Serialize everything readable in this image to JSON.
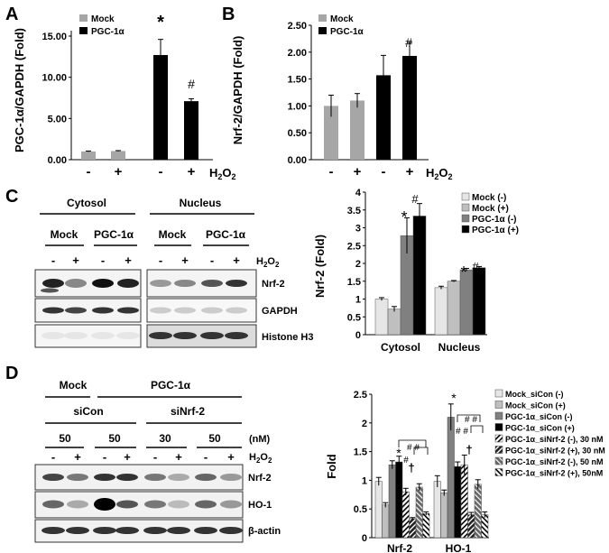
{
  "panel_letters": {
    "a": "A",
    "b": "B",
    "c": "C",
    "d": "D"
  },
  "h2o2": "H2O2",
  "panel_a": {
    "ylabel": "PGC-1α/GAPDH (Fold)",
    "yticks": [
      "0.00",
      "5.00",
      "10.00",
      "15.00"
    ],
    "legend": [
      "Mock",
      "PGC-1α"
    ],
    "treatment": [
      "-",
      "+",
      "-",
      "+"
    ],
    "marks": [
      "*",
      "#"
    ]
  },
  "panel_b": {
    "ylabel": "Nrf-2/GAPDH (Fold)",
    "yticks": [
      "0.00",
      "0.50",
      "1.00",
      "1.50",
      "2.00",
      "2.50"
    ],
    "legend": [
      "Mock",
      "PGC-1α"
    ],
    "treatment": [
      "-",
      "+",
      "-",
      "+"
    ],
    "marks": [
      "#"
    ]
  },
  "panel_c": {
    "blot": {
      "sections": [
        "Cytosol",
        "Nucleus"
      ],
      "groups": [
        "Mock",
        "PGC-1α",
        "Mock",
        "PGC-1α"
      ],
      "treatment": [
        "-",
        "+",
        "-",
        "+",
        "-",
        "+",
        "-",
        "+"
      ],
      "rows": [
        "Nrf-2",
        "GAPDH",
        "Histone H3"
      ]
    },
    "chart": {
      "ylabel": "Nrf-2 (Fold)",
      "yticks": [
        "0",
        "0.5",
        "1",
        "1.5",
        "2",
        "2.5",
        "3",
        "3.5",
        "4"
      ],
      "legend": [
        "Mock (-)",
        "Mock (+)",
        "PGC-1α (-)",
        "PGC-1α (+)"
      ],
      "categories": [
        "Cytosol",
        "Nucleus"
      ],
      "marks": [
        "*",
        "#",
        "*",
        "#"
      ]
    }
  },
  "panel_d": {
    "blot": {
      "groups_top": [
        "Mock",
        "PGC-1α"
      ],
      "groups_mid": [
        "siCon",
        "siNrf-2"
      ],
      "doses": [
        "50",
        "50",
        "30",
        "50"
      ],
      "unit": "(nM)",
      "treatment": [
        "-",
        "+",
        "-",
        "+",
        "-",
        "+",
        "-",
        "+"
      ],
      "rows": [
        "Nrf-2",
        "HO-1",
        "β-actin"
      ]
    },
    "chart": {
      "ylabel": "Fold",
      "yticks": [
        "0",
        "0.5",
        "1",
        "1.5",
        "2",
        "2.5"
      ],
      "legend": [
        "Mock_siCon (-)",
        "Mock_siCon (+)",
        "PGC-1α_siCon (-)",
        "PGC-1α_siCon (+)",
        "PGC-1α_siNrf-2 (-), 30 nM",
        "PGC-1α_siNrf-2 (+), 30 nM",
        "PGC-1α_siNrf-2 (-), 50 nM",
        "PGC-1α_siNrf-2 (+), 50nM"
      ],
      "categories": [
        "Nrf-2",
        "HO-1"
      ],
      "marks": [
        "*",
        "#",
        "†",
        "†",
        "# #",
        "# #"
      ]
    }
  },
  "chart_data": [
    {
      "type": "bar",
      "categories": [
        "Mock -",
        "Mock +",
        "PGC-1α -",
        "PGC-1α +"
      ],
      "values": [
        1.0,
        1.05,
        12.7,
        7.1
      ],
      "errors": [
        0.05,
        0.05,
        1.9,
        0.3
      ],
      "ylim": [
        0,
        15
      ],
      "ylabel": "PGC-1α/GAPDH (Fold)",
      "grid": false,
      "legend": "top-left",
      "colors": [
        "#a6a6a6",
        "#a6a6a6",
        "#000000",
        "#000000"
      ]
    },
    {
      "type": "bar",
      "categories": [
        "Mock -",
        "Mock +",
        "PGC-1α -",
        "PGC-1α +"
      ],
      "values": [
        1.0,
        1.1,
        1.57,
        1.93
      ],
      "errors": [
        0.2,
        0.13,
        0.37,
        0.25
      ],
      "ylim": [
        0,
        2.5
      ],
      "ylabel": "Nrf-2/GAPDH (Fold)",
      "grid": false,
      "legend": "top-left",
      "colors": [
        "#a6a6a6",
        "#a6a6a6",
        "#000000",
        "#000000"
      ]
    },
    {
      "type": "bar",
      "categories": [
        "Cytosol",
        "Nucleus"
      ],
      "series": [
        {
          "name": "Mock (-)",
          "values": [
            1.0,
            1.32
          ],
          "errors": [
            0.04,
            0.04
          ]
        },
        {
          "name": "Mock (+)",
          "values": [
            0.72,
            1.5
          ],
          "errors": [
            0.07,
            0.02
          ]
        },
        {
          "name": "PGC-1α (-)",
          "values": [
            2.78,
            1.82
          ],
          "errors": [
            0.5,
            0.04
          ]
        },
        {
          "name": "PGC-1α (+)",
          "values": [
            3.33,
            1.88
          ],
          "errors": [
            0.35,
            0.03
          ]
        }
      ],
      "ylim": [
        0,
        4
      ],
      "ylabel": "Nrf-2 (Fold)",
      "grid": false,
      "legend": "top-right",
      "colors": [
        "#e6e6e6",
        "#bfbfbf",
        "#808080",
        "#000000"
      ]
    },
    {
      "type": "bar",
      "categories": [
        "Nrf-2",
        "HO-1"
      ],
      "series": [
        {
          "name": "Mock_siCon (-)",
          "values": [
            0.98,
            0.98
          ],
          "errors": [
            0.07,
            0.1
          ]
        },
        {
          "name": "Mock_siCon (+)",
          "values": [
            0.57,
            0.78
          ],
          "errors": [
            0.04,
            0.05
          ]
        },
        {
          "name": "PGC-1α_siCon (-)",
          "values": [
            1.27,
            2.1
          ],
          "errors": [
            0.07,
            0.23
          ]
        },
        {
          "name": "PGC-1α_siCon (+)",
          "values": [
            1.32,
            1.24
          ],
          "errors": [
            0.1,
            0.08
          ]
        },
        {
          "name": "PGC-1α_siNrf-2 (-), 30 nM",
          "values": [
            0.8,
            1.27
          ],
          "errors": [
            0.06,
            0.17
          ]
        },
        {
          "name": "PGC-1α_siNrf-2 (+), 30 nM",
          "values": [
            0.33,
            0.4
          ],
          "errors": [
            0.02,
            0.04
          ]
        },
        {
          "name": "PGC-1α_siNrf-2 (-), 50 nM",
          "values": [
            0.88,
            0.93
          ],
          "errors": [
            0.06,
            0.08
          ]
        },
        {
          "name": "PGC-1α_siNrf-2 (+), 50nM",
          "values": [
            0.42,
            0.4
          ],
          "errors": [
            0.03,
            0.05
          ]
        }
      ],
      "ylim": [
        0,
        2.5
      ],
      "ylabel": "Fold",
      "grid": false,
      "legend": "right",
      "colors": [
        "#e6e6e6",
        "#bfbfbf",
        "#808080",
        "#000000",
        "#ffffff",
        "#333333",
        "#8c8c8c",
        "#ffffff"
      ]
    }
  ]
}
